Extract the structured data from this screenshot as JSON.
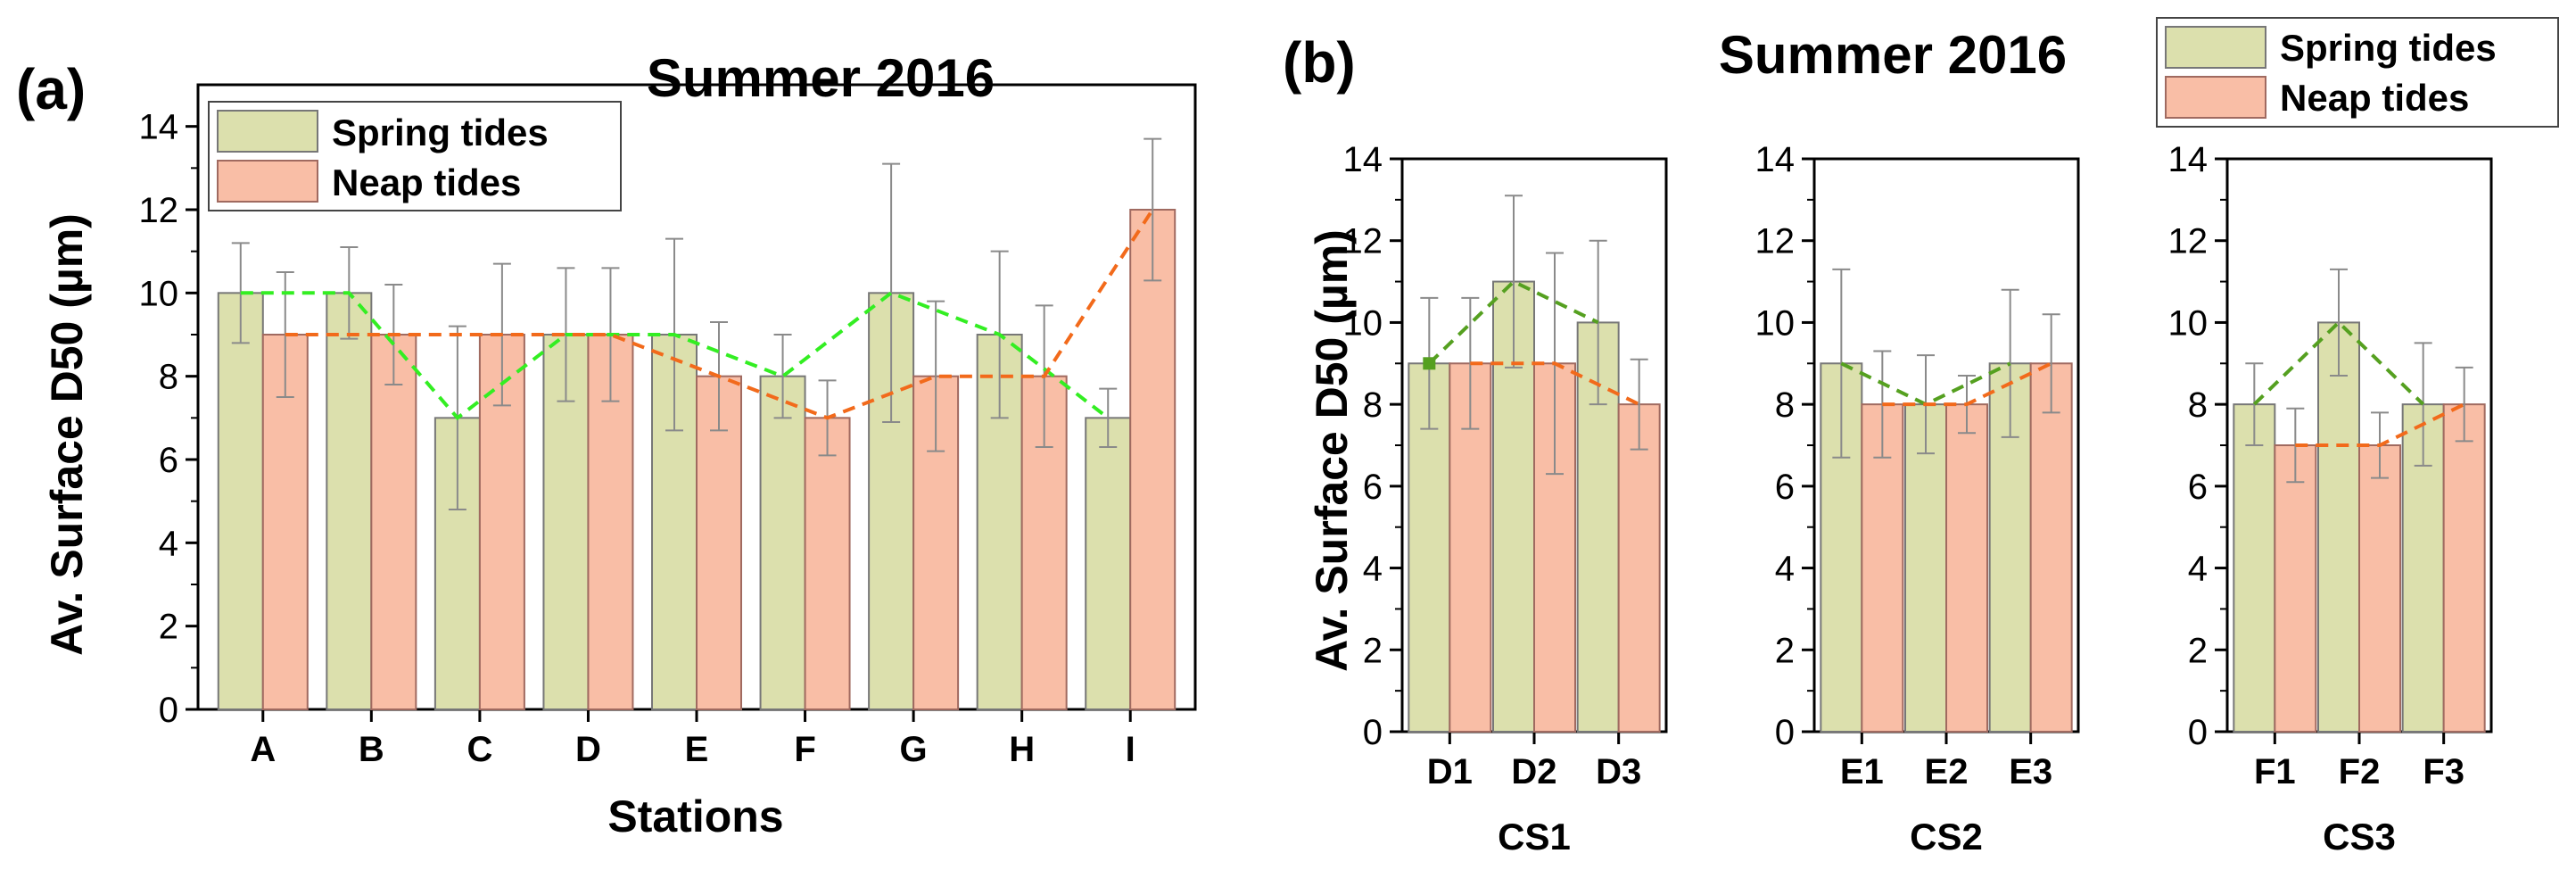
{
  "colors": {
    "spring_fill": "#dce0ad",
    "spring_edge": "#777777",
    "neap_fill": "#f9bea6",
    "neap_edge": "#a06a60",
    "line_a_spring": "#33ee22",
    "line_b_spring": "#55a020",
    "line_neap": "#f26a1b",
    "error_bar": "#8a8a8a"
  },
  "chart_data": [
    {
      "id": "a",
      "type": "bar",
      "panel_label": "(a)",
      "title": "Summer 2016",
      "xlabel": "Stations",
      "ylabel": "Av. Surface D50 (µm)",
      "ylim": [
        0,
        15
      ],
      "yticks": [
        0,
        2,
        4,
        6,
        8,
        10,
        12,
        14
      ],
      "categories": [
        "A",
        "B",
        "C",
        "D",
        "E",
        "F",
        "G",
        "H",
        "I"
      ],
      "series": [
        {
          "name": "Spring tides",
          "values": [
            10,
            10,
            7,
            9,
            9,
            8,
            10,
            9,
            7
          ],
          "errors": [
            1.2,
            1.1,
            2.2,
            1.6,
            2.3,
            1.0,
            3.1,
            2.0,
            0.7
          ]
        },
        {
          "name": "Neap tides",
          "values": [
            9,
            9,
            9,
            9,
            8,
            7,
            8,
            8,
            12
          ],
          "errors": [
            1.5,
            1.2,
            1.7,
            1.6,
            1.3,
            0.9,
            1.8,
            1.7,
            1.7
          ]
        }
      ],
      "legend": {
        "entries": [
          "Spring tides",
          "Neap tides"
        ],
        "position": "top-left"
      }
    },
    {
      "id": "b",
      "type": "bar",
      "panel_label": "(b)",
      "title": "Summer 2016",
      "ylabel": "Av. Surface D50 (µm)",
      "ylim": [
        0,
        14
      ],
      "yticks": [
        0,
        2,
        4,
        6,
        8,
        10,
        12,
        14
      ],
      "legend": {
        "entries": [
          "Spring tides",
          "Neap tides"
        ],
        "position": "top-right"
      },
      "subplots": [
        {
          "group": "CS1",
          "categories": [
            "D1",
            "D2",
            "D3"
          ],
          "series": [
            {
              "name": "Spring tides",
              "values": [
                9,
                11,
                10
              ],
              "errors": [
                1.6,
                2.1,
                2.0
              ]
            },
            {
              "name": "Neap tides",
              "values": [
                9,
                9,
                8
              ],
              "errors": [
                1.6,
                2.7,
                1.1
              ]
            }
          ]
        },
        {
          "group": "CS2",
          "categories": [
            "E1",
            "E2",
            "E3"
          ],
          "series": [
            {
              "name": "Spring tides",
              "values": [
                9,
                8,
                9
              ],
              "errors": [
                2.3,
                1.2,
                1.8
              ]
            },
            {
              "name": "Neap tides",
              "values": [
                8,
                8,
                9
              ],
              "errors": [
                1.3,
                0.7,
                1.2
              ]
            }
          ]
        },
        {
          "group": "CS3",
          "categories": [
            "F1",
            "F2",
            "F3"
          ],
          "series": [
            {
              "name": "Spring tides",
              "values": [
                8,
                10,
                8
              ],
              "errors": [
                1.0,
                1.3,
                1.5
              ]
            },
            {
              "name": "Neap tides",
              "values": [
                7,
                7,
                8
              ],
              "errors": [
                0.9,
                0.8,
                0.9
              ]
            }
          ]
        }
      ]
    }
  ]
}
